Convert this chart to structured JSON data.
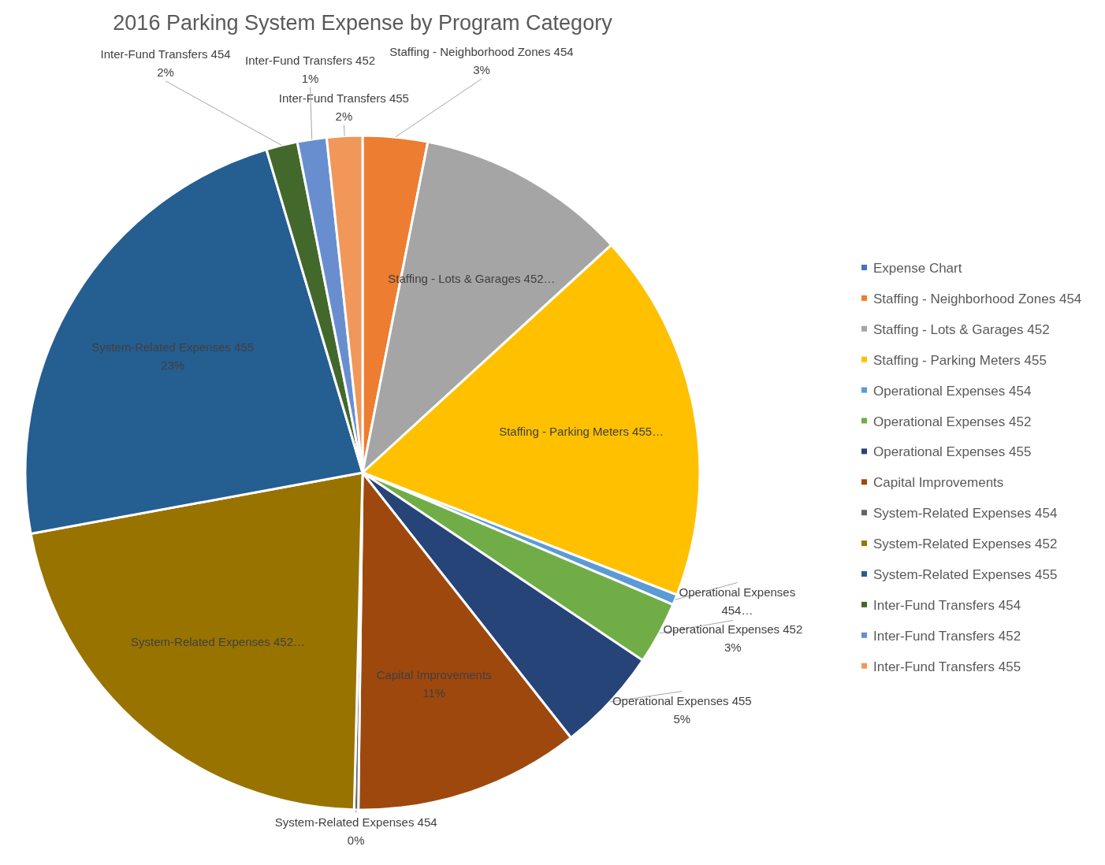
{
  "chart_data": {
    "type": "pie",
    "title": "2016 Parking System Expense by Program Category",
    "categories": [
      "Expense Chart",
      "Staffing - Neighborhood Zones 454",
      "Staffing - Lots & Garages 452",
      "Staffing - Parking Meters 455",
      "Operational Expenses 454",
      "Operational Expenses 452",
      "Operational Expenses 455",
      "Capital Improvements",
      "System-Related Expenses 454",
      "System-Related Expenses 452",
      "System-Related Expenses 455",
      "Inter-Fund Transfers 454",
      "Inter-Fund Transfers 452",
      "Inter-Fund Transfers 455"
    ],
    "values": [
      0,
      3.1,
      10.1,
      17.7,
      0.5,
      3.0,
      5.0,
      10.8,
      0.2,
      21.7,
      23.3,
      1.5,
      1.4,
      1.7
    ],
    "colors": [
      "#4472c4",
      "#ed7d31",
      "#a5a5a5",
      "#ffc000",
      "#5b9bd5",
      "#70ad47",
      "#264478",
      "#9e480e",
      "#636363",
      "#997300",
      "#255e91",
      "#43682b",
      "#698ed0",
      "#f1975a"
    ],
    "value_labels": [
      null,
      "Staffing - Neighborhood Zones 454\n3%",
      "Staffing - Lots & Garages 452…",
      "Staffing - Parking Meters 455…",
      "Operational Expenses\n454…",
      "Operational Expenses 452\n3%",
      "Operational Expenses 455\n5%",
      "Capital Improvements\n11%",
      "System-Related Expenses 454\n0%",
      "System-Related Expenses 452…",
      "System-Related Expenses 455\n23%",
      "Inter-Fund Transfers 454\n2%",
      "Inter-Fund Transfers 452\n1%",
      "Inter-Fund Transfers 455\n2%"
    ],
    "legend": "right"
  }
}
